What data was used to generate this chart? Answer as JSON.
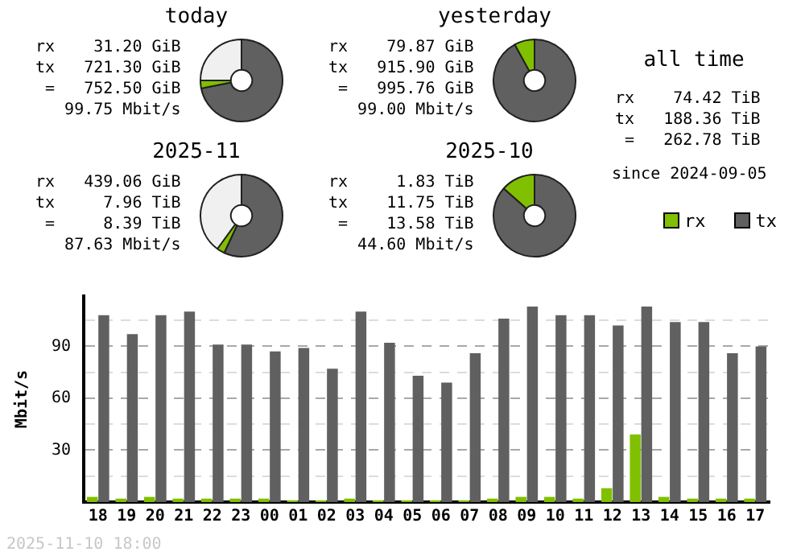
{
  "chart_data": [
    {
      "type": "donut",
      "title": "today",
      "categories": [
        null,
        null,
        null
      ],
      "values": [
        71.9,
        3.1,
        25
      ],
      "colors": [
        "#606060",
        "#80c000",
        "#f0f0f0"
      ],
      "annotations": [
        "rx    31.20 GiB",
        "tx   721.30 GiB",
        " =   752.50 GiB",
        "   99.75 Mbit/s"
      ]
    },
    {
      "type": "donut",
      "title": "yesterday",
      "categories": [
        null,
        null
      ],
      "values": [
        92,
        8
      ],
      "colors": [
        "#606060",
        "#80c000"
      ],
      "annotations": [
        "rx    79.87 GiB",
        "tx   915.90 GiB",
        " =   995.76 GiB",
        "   99.00 Mbit/s"
      ]
    },
    {
      "type": "donut",
      "title": "2025-11",
      "categories": [
        null,
        null,
        null
      ],
      "values": [
        56.9,
        3.1,
        40
      ],
      "colors": [
        "#606060",
        "#80c000",
        "#f0f0f0"
      ],
      "annotations": [
        "rx   439.06 GiB",
        "tx     7.96 TiB",
        " =     8.39 TiB",
        "   87.63 Mbit/s"
      ]
    },
    {
      "type": "donut",
      "title": "2025-10",
      "categories": [
        null,
        null
      ],
      "values": [
        86.5,
        13.5
      ],
      "colors": [
        "#606060",
        "#80c000"
      ],
      "annotations": [
        "rx     1.83 TiB",
        "tx    11.75 TiB",
        " =    13.58 TiB",
        "   44.60 Mbit/s"
      ]
    },
    {
      "type": "other",
      "title": "all time",
      "annotations": [
        "rx    74.42 TiB",
        "tx   188.36 TiB",
        " =   262.78 TiB",
        "since 2024-09-05"
      ]
    },
    {
      "type": "bar",
      "categories": [
        "18",
        "19",
        "20",
        "21",
        "22",
        "23",
        "00",
        "01",
        "02",
        "03",
        "04",
        "05",
        "06",
        "07",
        "08",
        "09",
        "10",
        "11",
        "12",
        "13",
        "14",
        "15",
        "16",
        "17"
      ],
      "series": [
        {
          "name": "rx",
          "color": "#80c000",
          "values": [
            3,
            2,
            3,
            2,
            2,
            2,
            2,
            1,
            1,
            2,
            1,
            1,
            1,
            1,
            2,
            3,
            3,
            2,
            8,
            39,
            3,
            2,
            2,
            2
          ]
        },
        {
          "name": "tx",
          "color": "#606060",
          "values": [
            108,
            97,
            108,
            110,
            91,
            91,
            87,
            89,
            77,
            110,
            92,
            73,
            69,
            86,
            106,
            113,
            108,
            108,
            102,
            113,
            104,
            104,
            86,
            90
          ]
        }
      ],
      "ylabel": "Mbit/s",
      "ylim": [
        0,
        119
      ],
      "yticks": [
        {
          "value": 15,
          "label": null
        },
        30,
        {
          "value": 45,
          "label": null
        },
        60,
        {
          "value": 75,
          "label": null
        },
        90,
        {
          "value": 105,
          "label": null
        }
      ],
      "grid": "y",
      "legend": "top right",
      "annotations": [
        "2025-11-10 18:00"
      ]
    }
  ]
}
